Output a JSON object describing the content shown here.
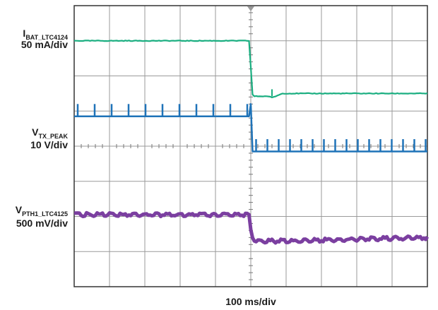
{
  "chart_data": {
    "type": "line",
    "grid": true,
    "x_divisions": 10,
    "y_divisions": 8,
    "xlabel": "100 ms/div",
    "x_step_div": 0.05,
    "channels": [
      {
        "key": "ibat",
        "label_main": "I",
        "label_sub": "BAT_LTC4124",
        "scale": "50 mA/div",
        "color": "#1aae80",
        "series": [
          {
            "x": 0,
            "y": 7.0
          },
          {
            "x": 4.98,
            "y": 7.0
          },
          {
            "x": 5.02,
            "y": 5.5
          },
          {
            "x": 5.1,
            "y": 5.42
          },
          {
            "x": 5.5,
            "y": 5.42
          },
          {
            "x": 5.6,
            "y": 5.38
          },
          {
            "x": 5.9,
            "y": 5.5
          },
          {
            "x": 10,
            "y": 5.5
          }
        ],
        "spikes": [
          {
            "x": 5.6,
            "y0": 5.42,
            "y1": 5.62
          }
        ]
      },
      {
        "key": "vtx",
        "label_main": "V",
        "label_sub": "TX_PEAK",
        "scale": "10 V/div",
        "color": "#1f73b8",
        "series": [
          {
            "x": 0,
            "y": 4.85
          },
          {
            "x": 4.95,
            "y": 4.85
          },
          {
            "x": 5.0,
            "y": 5.2
          },
          {
            "x": 5.05,
            "y": 3.85
          },
          {
            "x": 5.3,
            "y": 3.85
          },
          {
            "x": 10,
            "y": 3.85
          }
        ],
        "spikes_before": {
          "start": 0.1,
          "end": 4.9,
          "period": 0.48,
          "height": 0.35
        },
        "spikes_after": {
          "start": 5.15,
          "end": 9.95,
          "period": 0.32,
          "height": 0.35
        }
      },
      {
        "key": "vpth",
        "label_main": "V",
        "label_sub": "PTH1_LTC4125",
        "scale": "500 mV/div",
        "color": "#7b3fa0",
        "series": [
          {
            "x": 0,
            "y": 2.05
          },
          {
            "x": 4.95,
            "y": 2.05
          },
          {
            "x": 5.02,
            "y": 1.45
          },
          {
            "x": 5.1,
            "y": 1.3
          },
          {
            "x": 6.0,
            "y": 1.3
          },
          {
            "x": 10,
            "y": 1.4
          }
        ]
      }
    ]
  }
}
